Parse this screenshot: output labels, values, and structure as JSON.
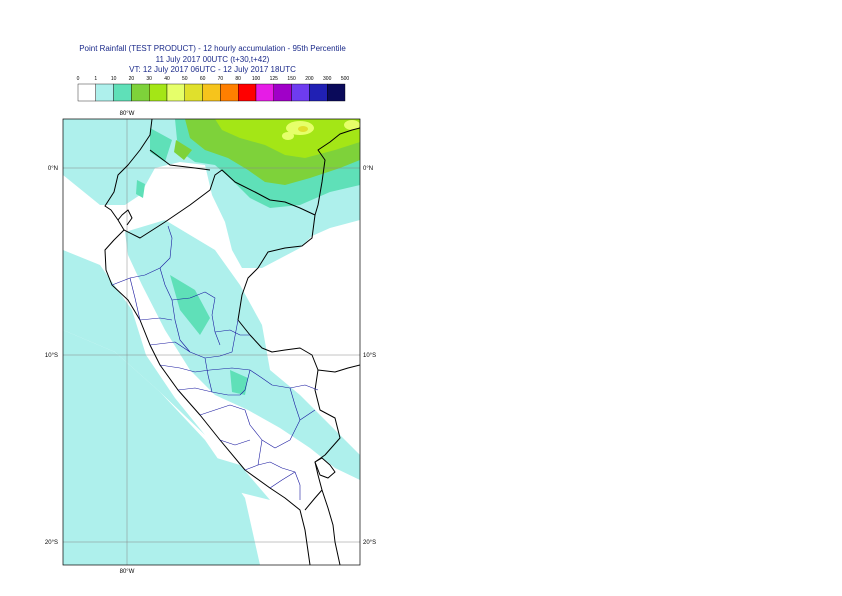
{
  "header": {
    "line1": "Point Rainfall (TEST PRODUCT) - 12 hourly accumulation - 95th Percentile",
    "line2": "11 July 2017 00UTC (t+30,t+42)",
    "line3": "VT: 12 July 2017 06UTC - 12 July 2017 18UTC"
  },
  "legend": {
    "levels": [
      "0",
      "1",
      "10",
      "20",
      "30",
      "40",
      "50",
      "60",
      "70",
      "80",
      "100",
      "125",
      "150",
      "200",
      "300",
      "500"
    ],
    "colors": [
      "#ffffff",
      "#aef0ec",
      "#5fe0b8",
      "#7ed23a",
      "#a4e616",
      "#e6ff6a",
      "#e0e02c",
      "#f6c41c",
      "#ff7f00",
      "#ff0000",
      "#e61ce6",
      "#a000c8",
      "#6e3cf0",
      "#2020b4",
      "#0a0a5a"
    ]
  },
  "map": {
    "lon_labels": [
      "80°W",
      "80°W"
    ],
    "lat_labels_left": [
      "0°N",
      "10°S",
      "20°S"
    ],
    "lat_labels_right": [
      "0°N",
      "10°S",
      "20°S"
    ],
    "colors": {
      "frame": "#000000",
      "grid": "#888888",
      "border": "#000000",
      "regions": "#1a1aa0"
    }
  }
}
